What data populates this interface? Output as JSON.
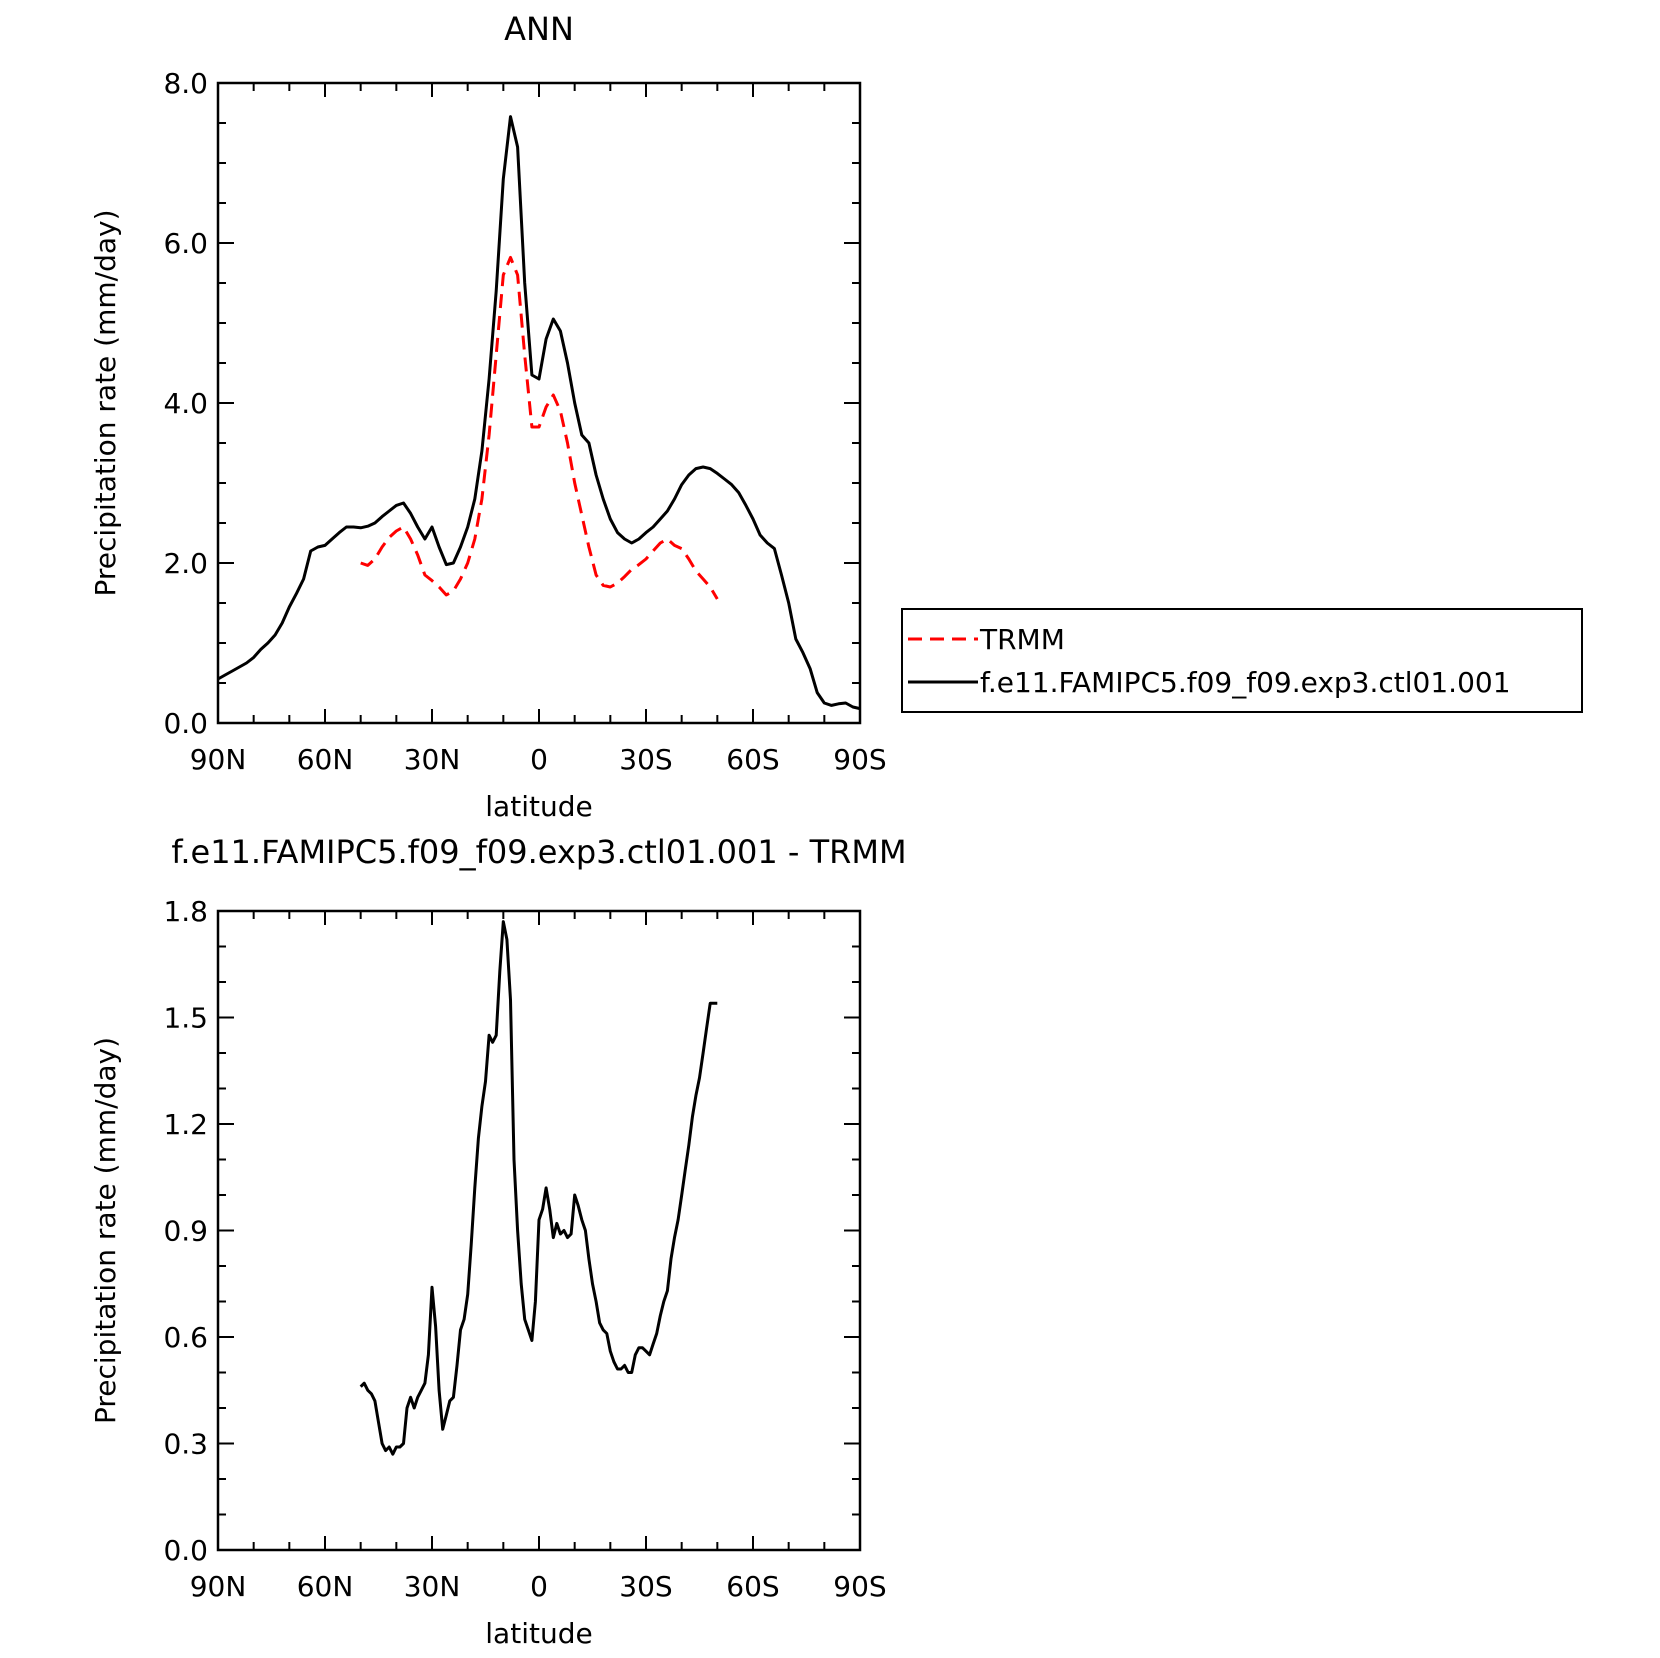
{
  "colors": {
    "black": "#000000",
    "red": "#ff0000"
  },
  "chart_data": [
    {
      "type": "line",
      "title": "ANN",
      "xlabel": "latitude",
      "ylabel": "Precipitation rate (mm/day)",
      "xlim": [
        90,
        -90
      ],
      "ylim": [
        0,
        8
      ],
      "x_ticks": [
        90,
        60,
        30,
        0,
        -30,
        -60,
        -90
      ],
      "x_tick_labels": [
        "90N",
        "60N",
        "30N",
        "0",
        "30S",
        "60S",
        "90S"
      ],
      "y_ticks": [
        0,
        2,
        4,
        6,
        8
      ],
      "y_tick_labels": [
        "0.0",
        "2.0",
        "4.0",
        "6.0",
        "8.0"
      ],
      "legend": {
        "placement": "right",
        "entries": [
          "TRMM",
          "f.e11.FAMIPC5.f09_f09.exp3.ctl01.001"
        ]
      },
      "series": [
        {
          "name": "TRMM",
          "color": "#ff0000",
          "dash": "dashed",
          "x": [
            50,
            48,
            46,
            44,
            42,
            40,
            38,
            36,
            34,
            32,
            30,
            28,
            26,
            24,
            22,
            20,
            18,
            16,
            14,
            12,
            10,
            8,
            6,
            4,
            2,
            0,
            -2,
            -4,
            -6,
            -8,
            -10,
            -12,
            -14,
            -16,
            -18,
            -20,
            -22,
            -24,
            -26,
            -28,
            -30,
            -32,
            -34,
            -36,
            -38,
            -40,
            -42,
            -44,
            -46,
            -48,
            -50
          ],
          "y": [
            2.0,
            1.97,
            2.05,
            2.2,
            2.32,
            2.4,
            2.45,
            2.3,
            2.1,
            1.85,
            1.78,
            1.7,
            1.6,
            1.65,
            1.8,
            2.0,
            2.3,
            2.8,
            3.6,
            4.6,
            5.6,
            5.82,
            5.6,
            4.6,
            3.7,
            3.7,
            3.95,
            4.1,
            3.9,
            3.5,
            3.0,
            2.6,
            2.2,
            1.85,
            1.72,
            1.7,
            1.75,
            1.83,
            1.92,
            1.98,
            2.05,
            2.15,
            2.25,
            2.3,
            2.22,
            2.18,
            2.05,
            1.9,
            1.8,
            1.7,
            1.55
          ]
        },
        {
          "name": "f.e11.FAMIPC5.f09_f09.exp3.ctl01.001",
          "color": "#000000",
          "dash": "solid",
          "x": [
            90,
            88,
            86,
            84,
            82,
            80,
            78,
            76,
            74,
            72,
            70,
            68,
            66,
            64,
            62,
            60,
            58,
            56,
            54,
            52,
            50,
            48,
            46,
            44,
            42,
            40,
            38,
            36,
            34,
            32,
            30,
            28,
            26,
            24,
            22,
            20,
            18,
            16,
            14,
            12,
            10,
            8,
            6,
            4,
            2,
            0,
            -2,
            -4,
            -6,
            -8,
            -10,
            -12,
            -14,
            -16,
            -18,
            -20,
            -22,
            -24,
            -26,
            -28,
            -30,
            -32,
            -34,
            -36,
            -38,
            -40,
            -42,
            -44,
            -46,
            -48,
            -50,
            -52,
            -54,
            -56,
            -58,
            -60,
            -62,
            -64,
            -66,
            -68,
            -70,
            -72,
            -74,
            -76,
            -78,
            -80,
            -82,
            -84,
            -86,
            -88,
            -90
          ],
          "y": [
            0.55,
            0.6,
            0.65,
            0.7,
            0.75,
            0.82,
            0.92,
            1.0,
            1.1,
            1.25,
            1.45,
            1.62,
            1.8,
            2.15,
            2.2,
            2.22,
            2.3,
            2.38,
            2.45,
            2.45,
            2.44,
            2.46,
            2.5,
            2.58,
            2.65,
            2.72,
            2.75,
            2.62,
            2.45,
            2.3,
            2.45,
            2.2,
            1.98,
            2.0,
            2.2,
            2.45,
            2.8,
            3.4,
            4.3,
            5.4,
            6.8,
            7.58,
            7.2,
            5.5,
            4.35,
            4.3,
            4.8,
            5.05,
            4.9,
            4.5,
            4.0,
            3.6,
            3.5,
            3.1,
            2.8,
            2.55,
            2.38,
            2.3,
            2.25,
            2.3,
            2.38,
            2.45,
            2.55,
            2.65,
            2.8,
            2.98,
            3.1,
            3.18,
            3.2,
            3.18,
            3.12,
            3.05,
            2.98,
            2.88,
            2.72,
            2.55,
            2.35,
            2.25,
            2.18,
            1.85,
            1.5,
            1.05,
            0.88,
            0.68,
            0.38,
            0.25,
            0.22,
            0.24,
            0.25,
            0.2,
            0.18
          ]
        }
      ]
    },
    {
      "type": "line",
      "title": "f.e11.FAMIPC5.f09_f09.exp3.ctl01.001 - TRMM",
      "xlabel": "latitude",
      "ylabel": "Precipitation rate (mm/day)",
      "xlim": [
        90,
        -90
      ],
      "ylim": [
        0,
        1.8
      ],
      "x_ticks": [
        90,
        60,
        30,
        0,
        -30,
        -60,
        -90
      ],
      "x_tick_labels": [
        "90N",
        "60N",
        "30N",
        "0",
        "30S",
        "60S",
        "90S"
      ],
      "y_ticks": [
        0,
        0.3,
        0.6,
        0.9,
        1.2,
        1.5,
        1.8
      ],
      "y_tick_labels": [
        "0.0",
        "0.3",
        "0.6",
        "0.9",
        "1.2",
        "1.5",
        "1.8"
      ],
      "series": [
        {
          "color": "#000000",
          "dash": "solid",
          "x": [
            50,
            49,
            48,
            47,
            46,
            45,
            44,
            43,
            42,
            41,
            40,
            39,
            38,
            37,
            36,
            35,
            34,
            33,
            32,
            31,
            30,
            29,
            28,
            27,
            26,
            25,
            24,
            23,
            22,
            21,
            20,
            19,
            18,
            17,
            16,
            15,
            14,
            13,
            12,
            11,
            10,
            9,
            8,
            7,
            6,
            5,
            4,
            3,
            2,
            1,
            0,
            -1,
            -2,
            -3,
            -4,
            -5,
            -6,
            -7,
            -8,
            -9,
            -10,
            -11,
            -12,
            -13,
            -14,
            -15,
            -16,
            -17,
            -18,
            -19,
            -20,
            -21,
            -22,
            -23,
            -24,
            -25,
            -26,
            -27,
            -28,
            -29,
            -30,
            -31,
            -32,
            -33,
            -34,
            -35,
            -36,
            -37,
            -38,
            -39,
            -40,
            -41,
            -42,
            -43,
            -44,
            -45,
            -46,
            -47,
            -48,
            -49,
            -50
          ],
          "y": [
            0.46,
            0.47,
            0.45,
            0.44,
            0.42,
            0.36,
            0.3,
            0.28,
            0.29,
            0.27,
            0.29,
            0.29,
            0.3,
            0.4,
            0.43,
            0.4,
            0.43,
            0.45,
            0.47,
            0.55,
            0.74,
            0.63,
            0.45,
            0.34,
            0.38,
            0.42,
            0.43,
            0.52,
            0.62,
            0.65,
            0.72,
            0.86,
            1.02,
            1.16,
            1.25,
            1.32,
            1.45,
            1.43,
            1.45,
            1.63,
            1.77,
            1.72,
            1.55,
            1.1,
            0.9,
            0.75,
            0.65,
            0.62,
            0.59,
            0.7,
            0.93,
            0.96,
            1.02,
            0.96,
            0.88,
            0.92,
            0.89,
            0.9,
            0.88,
            0.89,
            1.0,
            0.97,
            0.93,
            0.9,
            0.82,
            0.75,
            0.7,
            0.64,
            0.62,
            0.61,
            0.56,
            0.53,
            0.51,
            0.51,
            0.52,
            0.5,
            0.5,
            0.55,
            0.57,
            0.57,
            0.56,
            0.55,
            0.58,
            0.61,
            0.66,
            0.7,
            0.73,
            0.82,
            0.88,
            0.93,
            1.0,
            1.07,
            1.14,
            1.22,
            1.28,
            1.33,
            1.4,
            1.47,
            1.54,
            1.54,
            1.54
          ]
        }
      ]
    }
  ]
}
